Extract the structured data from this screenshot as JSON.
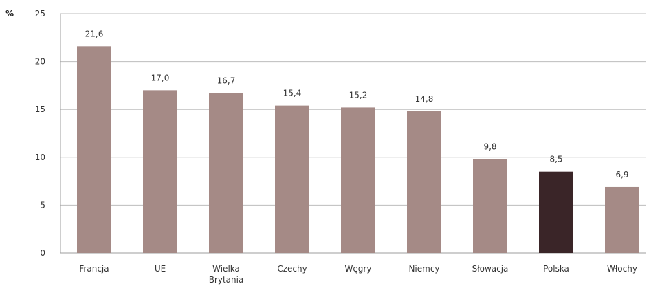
{
  "chart_data": {
    "type": "bar",
    "y_unit_label": "%",
    "categories": [
      [
        "Francja"
      ],
      [
        "UE"
      ],
      [
        "Wielka",
        "Brytania"
      ],
      [
        "Czechy"
      ],
      [
        "Węgry"
      ],
      [
        "Niemcy"
      ],
      [
        "Słowacja"
      ],
      [
        "Polska"
      ],
      [
        "Włochy"
      ]
    ],
    "values": [
      21.6,
      17.0,
      16.7,
      15.4,
      15.2,
      14.8,
      9.8,
      8.5,
      6.9
    ],
    "value_labels": [
      "21,6",
      "17,0",
      "16,7",
      "15,4",
      "15,2",
      "14,8",
      "9,8",
      "8,5",
      "6,9"
    ],
    "y_ticks": [
      "0",
      "5",
      "10",
      "15",
      "20",
      "25"
    ],
    "ylim": [
      0,
      25
    ],
    "grid": true,
    "legend": "none",
    "colors": {
      "bar": "#a58a86",
      "highlight": "#3a2528",
      "grid": "#bdbdbd"
    },
    "highlight_index": 7
  }
}
